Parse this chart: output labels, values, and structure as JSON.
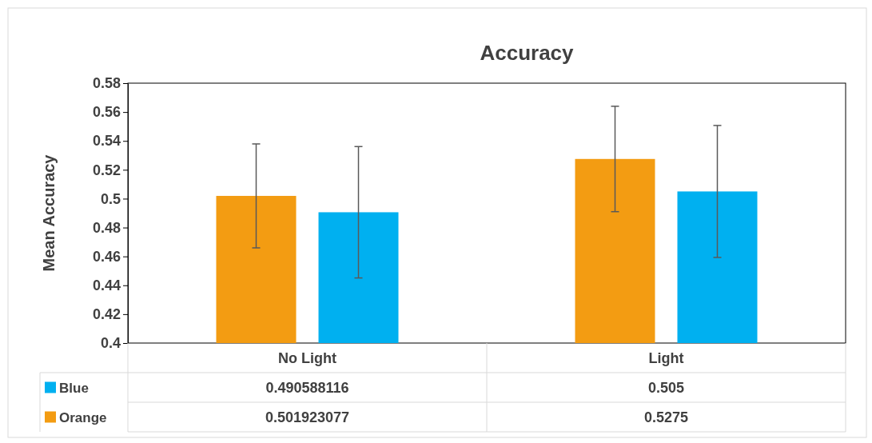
{
  "chart_data": {
    "type": "bar",
    "title": "Accuracy",
    "ylabel": "Mean Accuracy",
    "categories": [
      "No Light",
      "Light"
    ],
    "series": [
      {
        "name": "Orange",
        "color": "#f39c12",
        "values": [
          0.501923077,
          0.5275
        ],
        "errors": [
          0.036,
          0.0365
        ]
      },
      {
        "name": "Blue",
        "color": "#00b0f0",
        "values": [
          0.490588116,
          0.505
        ],
        "errors": [
          0.0455,
          0.0457
        ]
      }
    ],
    "ylim": [
      0.4,
      0.58
    ],
    "yticks": [
      0.4,
      0.42,
      0.44,
      0.46,
      0.48,
      0.5,
      0.52,
      0.54,
      0.56,
      0.58
    ],
    "data_labels": true,
    "legend": "bottom left"
  }
}
